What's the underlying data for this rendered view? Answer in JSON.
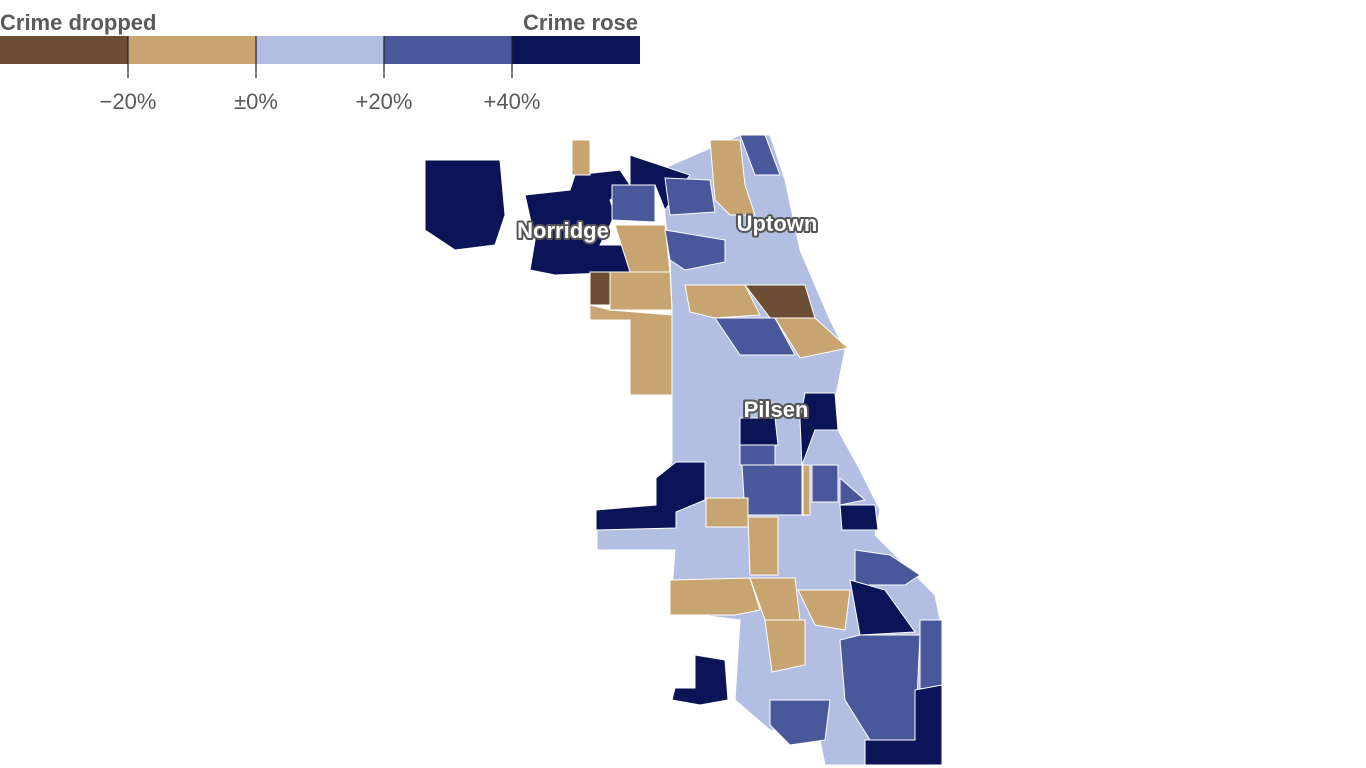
{
  "legend": {
    "left_label": "Crime dropped",
    "right_label": "Crime rose",
    "colors": [
      "#6b4e33",
      "#c8a570",
      "#b3bee3",
      "#48589a",
      "#0a1457"
    ],
    "ticks": [
      {
        "value": -20,
        "label": "−20%"
      },
      {
        "value": 0,
        "label": "±0%"
      },
      {
        "value": 20,
        "label": "+20%"
      },
      {
        "value": 40,
        "label": "+40%"
      }
    ]
  },
  "labels": [
    "Norridge",
    "Uptown",
    "Pilsen"
  ]
}
